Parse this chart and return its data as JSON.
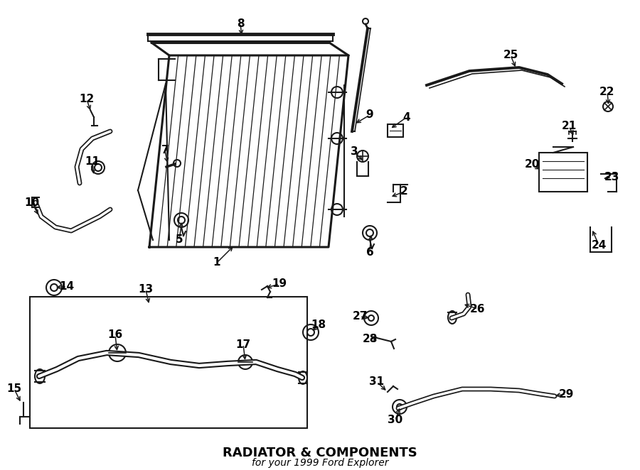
{
  "title": "RADIATOR & COMPONENTS",
  "subtitle": "for your 1999 Ford Explorer",
  "bg_color": "#ffffff",
  "line_color": "#1a1a1a",
  "text_color": "#000000",
  "fig_width": 9.0,
  "fig_height": 6.62,
  "dpi": 100
}
